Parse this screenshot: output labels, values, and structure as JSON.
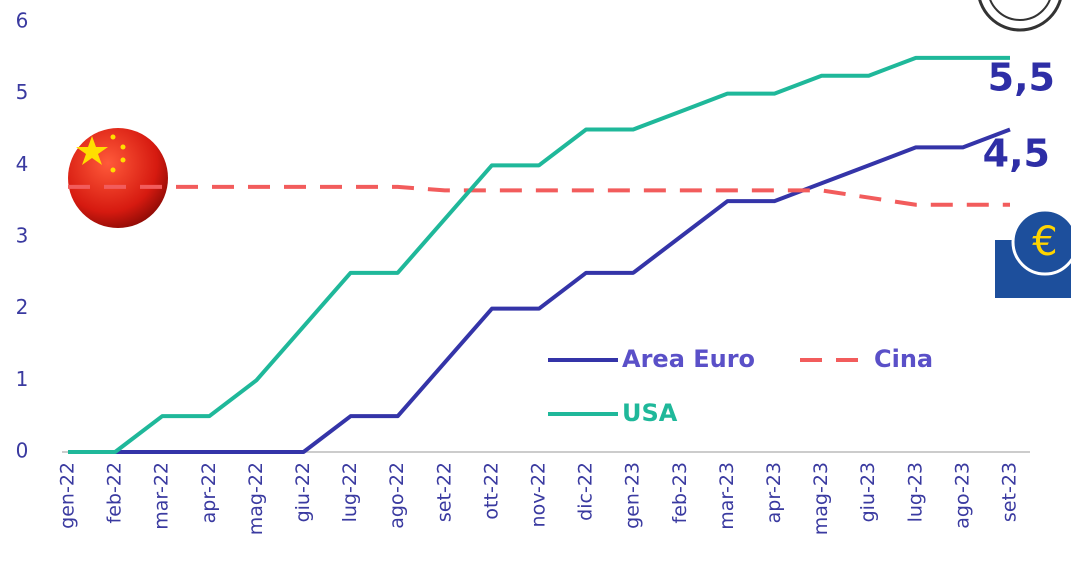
{
  "chart_data": {
    "type": "line",
    "categories": [
      "gen-22",
      "feb-22",
      "mar-22",
      "apr-22",
      "mag-22",
      "giu-22",
      "lug-22",
      "ago-22",
      "set-22",
      "ott-22",
      "nov-22",
      "dic-22",
      "gen-23",
      "feb-23",
      "mar-23",
      "apr-23",
      "mag-23",
      "giu-23",
      "lug-23",
      "ago-23",
      "set-23"
    ],
    "series": [
      {
        "name": "Area Euro",
        "color": "#3434a8",
        "dash": false,
        "values": [
          0,
          0,
          0,
          0,
          0,
          0,
          0.5,
          0.5,
          1.25,
          2,
          2,
          2.5,
          2.5,
          3,
          3.5,
          3.5,
          3.75,
          4,
          4.25,
          4.25,
          4.5
        ]
      },
      {
        "name": "Cina",
        "color": "#f25c5c",
        "dash": true,
        "values": [
          3.7,
          3.7,
          3.7,
          3.7,
          3.7,
          3.7,
          3.7,
          3.7,
          3.65,
          3.65,
          3.65,
          3.65,
          3.65,
          3.65,
          3.65,
          3.65,
          3.65,
          3.55,
          3.45,
          3.45,
          3.45
        ]
      },
      {
        "name": "USA",
        "color": "#1fb89a",
        "dash": false,
        "values": [
          0,
          0,
          0.5,
          0.5,
          1,
          1.75,
          2.5,
          2.5,
          3.25,
          4,
          4,
          4.5,
          4.5,
          4.75,
          5,
          5,
          5.25,
          5.25,
          5.5,
          5.5,
          5.5
        ]
      }
    ],
    "annotations": [
      "5,5",
      "4,5"
    ],
    "ylim": [
      0,
      6
    ],
    "yticks": [
      0,
      1,
      2,
      3,
      4,
      5,
      6
    ],
    "grid": false
  }
}
